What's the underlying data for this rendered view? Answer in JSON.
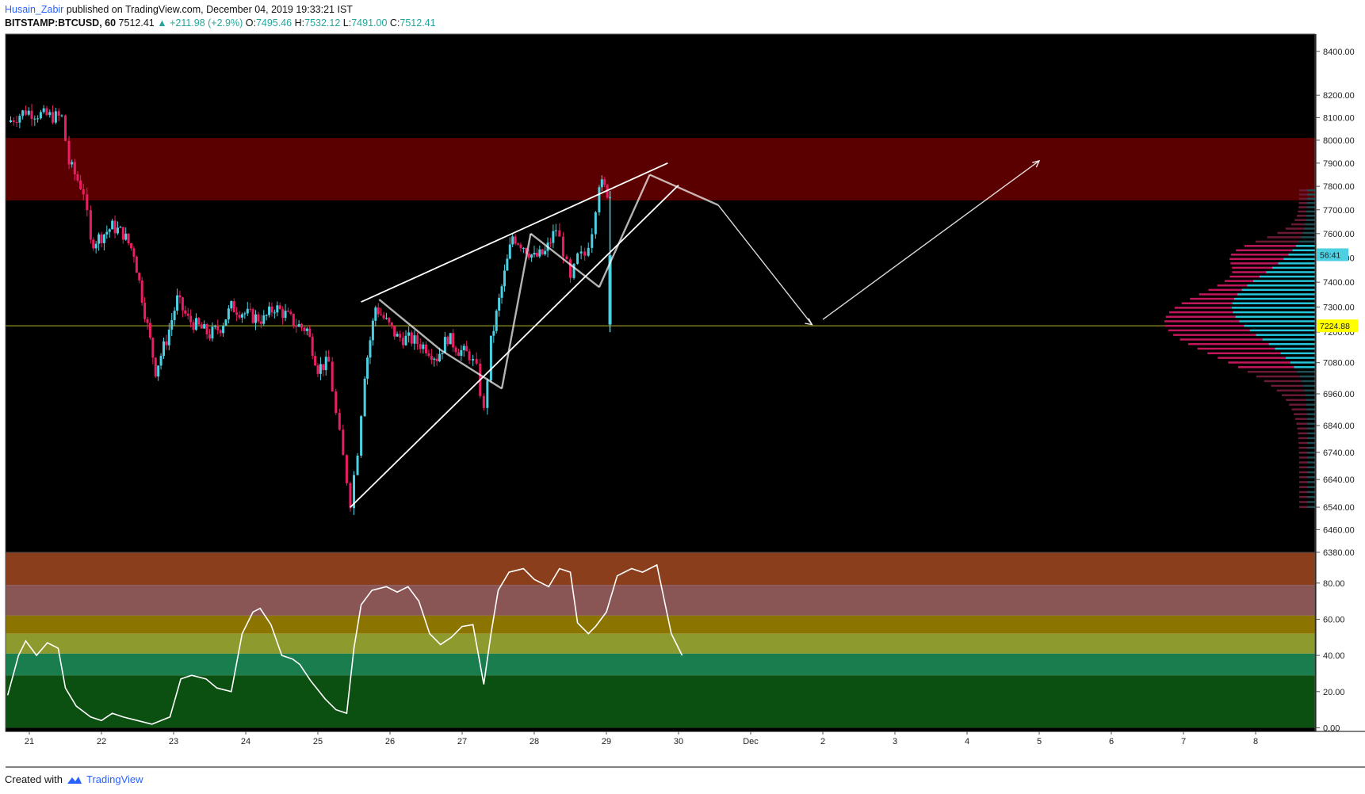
{
  "header": {
    "author": "Husain_Zabir",
    "published_text": " published on TradingView.com, December 04, 2019 19:33:21 IST",
    "symbol": "BITSTAMP:BTCUSD, 60",
    "last": "7512.41",
    "change": "▲ +211.98 (+2.9%)",
    "o_label": "O:",
    "o_value": "7495.46",
    "h_label": "H:",
    "h_value": "7532.12",
    "l_label": "L:",
    "l_value": "7491.00",
    "c_label": "C:",
    "c_value": "7512.41"
  },
  "footer": {
    "created_with": "Created with",
    "brand": "TradingView"
  },
  "colors": {
    "background": "#000000",
    "up": "#4dd0e1",
    "down": "#e91e63",
    "resistance_zone": "#5a0000",
    "support_line": "#b5b52a",
    "drawing": "#ffffff",
    "last_price_label": "#4dd0e1",
    "support_label": "#ffff00"
  },
  "chart_data": [
    {
      "type": "candlestick",
      "symbol": "BITSTAMP:BTCUSD",
      "interval": "60",
      "y_tick_labels": [
        "8400.00",
        "8200.00",
        "8100.00",
        "8000.00",
        "7900.00",
        "7800.00",
        "7700.00",
        "7600.00",
        "7500.00",
        "7400.00",
        "7300.00",
        "7200.00",
        "7080.00",
        "6960.00",
        "6840.00",
        "6740.00",
        "6640.00",
        "6540.00",
        "6460.00",
        "6380.00"
      ],
      "y_scale": "log",
      "ylim": [
        6380,
        8480
      ],
      "x_tick_labels": [
        "21",
        "22",
        "23",
        "24",
        "25",
        "26",
        "27",
        "28",
        "29",
        "30",
        "Dec",
        "2",
        "3",
        "4",
        "5",
        "6",
        "7",
        "8"
      ],
      "x_range_days": [
        20.7,
        29.05
      ],
      "close_path": [
        [
          20.7,
          8080
        ],
        [
          20.95,
          8130
        ],
        [
          21.2,
          8110
        ],
        [
          21.45,
          8100
        ],
        [
          21.55,
          7900
        ],
        [
          21.75,
          7780
        ],
        [
          21.85,
          7560
        ],
        [
          22.0,
          7590
        ],
        [
          22.15,
          7630
        ],
        [
          22.3,
          7600
        ],
        [
          22.45,
          7520
        ],
        [
          22.6,
          7280
        ],
        [
          22.75,
          7050
        ],
        [
          22.9,
          7170
        ],
        [
          23.05,
          7330
        ],
        [
          23.2,
          7250
        ],
        [
          23.35,
          7220
        ],
        [
          23.5,
          7190
        ],
        [
          23.65,
          7220
        ],
        [
          23.8,
          7300
        ],
        [
          23.95,
          7280
        ],
        [
          24.1,
          7260
        ],
        [
          24.25,
          7250
        ],
        [
          24.4,
          7300
        ],
        [
          24.55,
          7270
        ],
        [
          24.7,
          7230
        ],
        [
          24.85,
          7210
        ],
        [
          25.0,
          7060
        ],
        [
          25.15,
          7080
        ],
        [
          25.25,
          6880
        ],
        [
          25.35,
          6720
        ],
        [
          25.45,
          6560
        ],
        [
          25.55,
          6750
        ],
        [
          25.65,
          7040
        ],
        [
          25.8,
          7300
        ],
        [
          25.95,
          7240
        ],
        [
          26.1,
          7180
        ],
        [
          26.3,
          7170
        ],
        [
          26.5,
          7140
        ],
        [
          26.65,
          7100
        ],
        [
          26.8,
          7180
        ],
        [
          26.95,
          7130
        ],
        [
          27.1,
          7110
        ],
        [
          27.2,
          7050
        ],
        [
          27.3,
          6890
        ],
        [
          27.4,
          7160
        ],
        [
          27.55,
          7380
        ],
        [
          27.7,
          7590
        ],
        [
          27.85,
          7550
        ],
        [
          28.0,
          7500
        ],
        [
          28.15,
          7520
        ],
        [
          28.3,
          7620
        ],
        [
          28.4,
          7530
        ],
        [
          28.5,
          7400
        ],
        [
          28.6,
          7500
        ],
        [
          28.7,
          7510
        ],
        [
          28.8,
          7620
        ],
        [
          28.9,
          7820
        ],
        [
          29.05,
          7760
        ]
      ],
      "current_price": 7512.41,
      "current_price_label": "56:41",
      "support_level": 7224.88,
      "support_label": "7224.88",
      "resistance_zone": [
        7740,
        8010
      ],
      "volume_profile": "visible",
      "title": "",
      "xlabel": "",
      "ylabel": ""
    },
    {
      "type": "line",
      "name": "oscillator",
      "y_tick_labels": [
        "80.00",
        "60.00",
        "40.00",
        "20.00",
        "0.00"
      ],
      "ylim": [
        -2,
        97
      ],
      "bands": [
        {
          "from": 79,
          "to": 97,
          "color": "#8b3e1c"
        },
        {
          "from": 62,
          "to": 79,
          "color": "#8a5555"
        },
        {
          "from": 52,
          "to": 62,
          "color": "#8b7400"
        },
        {
          "from": 41,
          "to": 52,
          "color": "#8c9a2e"
        },
        {
          "from": 29,
          "to": 41,
          "color": "#1a7d4e"
        },
        {
          "from": 0,
          "to": 29,
          "color": "#0b4f11"
        }
      ],
      "x_days": [
        20.7,
        20.85,
        20.95,
        21.1,
        21.25,
        21.4,
        21.5,
        21.65,
        21.85,
        22.0,
        22.15,
        22.3,
        22.5,
        22.7,
        22.95,
        23.1,
        23.25,
        23.45,
        23.6,
        23.8,
        23.95,
        24.1,
        24.2,
        24.35,
        24.5,
        24.65,
        24.75,
        24.9,
        25.1,
        25.25,
        25.4,
        25.5,
        25.6,
        25.75,
        25.95,
        26.1,
        26.25,
        26.4,
        26.55,
        26.7,
        26.85,
        27.0,
        27.15,
        27.3,
        27.4,
        27.5,
        27.65,
        27.85,
        28.0,
        28.2,
        28.35,
        28.5,
        28.6,
        28.75,
        28.85,
        29.0,
        29.15,
        29.35,
        29.5,
        29.7,
        29.9,
        30.05
      ],
      "values": [
        18,
        40,
        48,
        40,
        47,
        44,
        22,
        12,
        6,
        4,
        8,
        6,
        4,
        2,
        6,
        27,
        29,
        27,
        22,
        20,
        52,
        64,
        66,
        57,
        40,
        38,
        35,
        26,
        16,
        10,
        8,
        44,
        68,
        76,
        78,
        75,
        78,
        70,
        52,
        46,
        50,
        56,
        57,
        24,
        52,
        76,
        86,
        88,
        82,
        78,
        88,
        86,
        58,
        52,
        56,
        64,
        84,
        88,
        86,
        90,
        52,
        40
      ],
      "title": "",
      "xlabel": "",
      "ylabel": ""
    }
  ]
}
